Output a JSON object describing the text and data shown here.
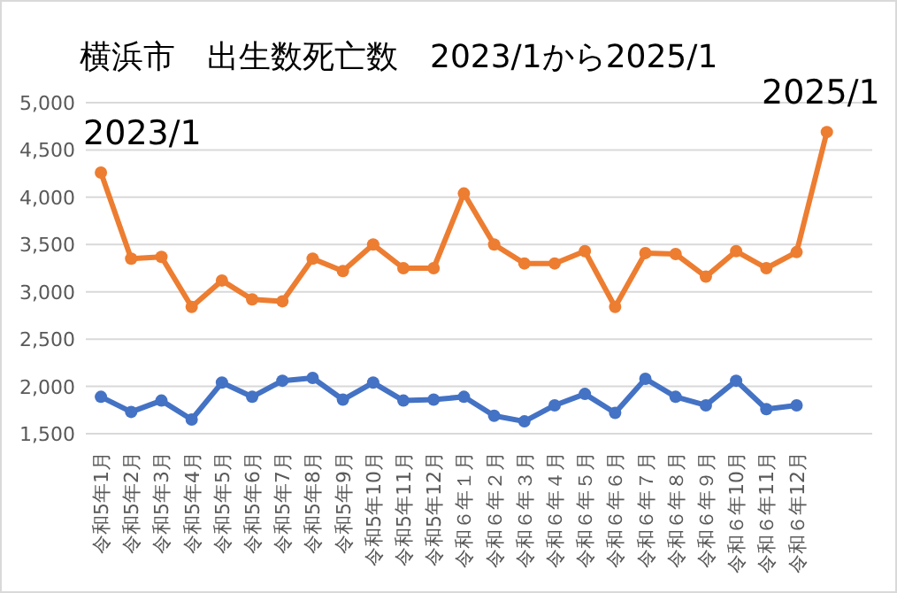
{
  "chart_data": {
    "type": "line",
    "title": "横浜市　出生数死亡数　2023/1から2025/1",
    "categories": [
      "令和5年1月",
      "令和5年2月",
      "令和5年3月",
      "令和5年4月",
      "令和5年5月",
      "令和5年6月",
      "令和5年7月",
      "令和5年8月",
      "令和5年9月",
      "令和5年10月",
      "令和5年11月",
      "令和5年12月",
      "令和６年１月",
      "令和６年２月",
      "令和６年３月",
      "令和６年４月",
      "令和６年５月",
      "令和６年６月",
      "令和６年７月",
      "令和６年８月",
      "令和６年９月",
      "令和６年10月",
      "令和６年11月",
      "令和６年12月",
      null
    ],
    "series": [
      {
        "color": "#ed7d31",
        "values": [
          4260,
          3350,
          3370,
          2840,
          3120,
          2920,
          2900,
          3350,
          3220,
          3500,
          3250,
          3250,
          4040,
          3500,
          3300,
          3300,
          3430,
          2840,
          3410,
          3400,
          3160,
          3430,
          3250,
          3420,
          4690
        ]
      },
      {
        "color": "#4472c4",
        "values": [
          1890,
          1730,
          1850,
          1650,
          2040,
          1890,
          2060,
          2090,
          1860,
          2040,
          1850,
          1860,
          1890,
          1690,
          1630,
          1800,
          1920,
          1720,
          2080,
          1890,
          1800,
          2060,
          1760,
          1800,
          null
        ]
      }
    ],
    "ylim": [
      1500,
      5000
    ],
    "yticks": [
      {
        "value": 1500,
        "label": "1,500"
      },
      {
        "value": 2000,
        "label": "2,000"
      },
      {
        "value": 2500,
        "label": "2,500"
      },
      {
        "value": 3000,
        "label": "3,000"
      },
      {
        "value": 3500,
        "label": "3,500"
      },
      {
        "value": 4000,
        "label": "4,000"
      },
      {
        "value": 4500,
        "label": "4,500"
      },
      {
        "value": 5000,
        "label": "5,000"
      }
    ],
    "grid": "y",
    "marker": "circle",
    "line_style": "solid",
    "annotations": [
      {
        "text": "2023/1",
        "x": "令和5年1月",
        "y": 4260
      },
      {
        "text": "2025/1",
        "y": 4690
      }
    ]
  }
}
